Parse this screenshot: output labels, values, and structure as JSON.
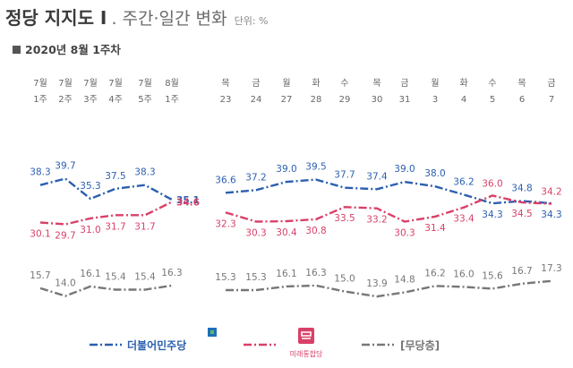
{
  "header": {
    "title": "정당 지지도 I",
    "title_sub": ". 주간·일간 변화",
    "unit": "단위: %",
    "period": "2020년 8월 1주차"
  },
  "legend": {
    "democratic": "더불어민주당",
    "future": "미래통합당",
    "independent": "[무당층]"
  },
  "colors": {
    "democratic": "#2b5fb0",
    "future": "#d94068",
    "independent": "#777777",
    "background": "#ffffff"
  },
  "chart_data": {
    "type": "line",
    "title": "정당 지지도 I",
    "ylabel": "",
    "x_weekly": [
      {
        "top": "7월",
        "bottom": "1주"
      },
      {
        "top": "7월",
        "bottom": "2주"
      },
      {
        "top": "7월",
        "bottom": "3주"
      },
      {
        "top": "7월",
        "bottom": "4주"
      },
      {
        "top": "7월",
        "bottom": "5주"
      },
      {
        "top": "8월",
        "bottom": "1주"
      }
    ],
    "x_daily": [
      {
        "top": "목",
        "bottom": "23"
      },
      {
        "top": "금",
        "bottom": "24"
      },
      {
        "top": "월",
        "bottom": "27"
      },
      {
        "top": "화",
        "bottom": "28"
      },
      {
        "top": "수",
        "bottom": "29"
      },
      {
        "top": "목",
        "bottom": "30"
      },
      {
        "top": "금",
        "bottom": "31"
      },
      {
        "top": "월",
        "bottom": "3"
      },
      {
        "top": "화",
        "bottom": "4"
      },
      {
        "top": "수",
        "bottom": "5"
      },
      {
        "top": "목",
        "bottom": "6"
      },
      {
        "top": "금",
        "bottom": "7"
      }
    ],
    "series": [
      {
        "name": "더불어민주당",
        "weekly": [
          38.3,
          39.7,
          35.3,
          37.5,
          38.3,
          35.1
        ],
        "daily": [
          36.6,
          37.2,
          39.0,
          39.5,
          37.7,
          37.4,
          39.0,
          38.0,
          36.2,
          34.3,
          34.8,
          34.3
        ]
      },
      {
        "name": "미래통합당",
        "weekly": [
          30.1,
          29.7,
          31.0,
          31.7,
          31.7,
          34.6
        ],
        "daily": [
          32.3,
          30.3,
          30.4,
          30.8,
          33.5,
          33.2,
          30.3,
          31.4,
          33.4,
          36.0,
          34.5,
          34.2
        ]
      },
      {
        "name": "[무당층]",
        "weekly": [
          15.7,
          14.0,
          16.1,
          15.4,
          15.4,
          16.3
        ],
        "daily": [
          15.3,
          15.3,
          16.1,
          16.3,
          15.0,
          13.9,
          14.8,
          16.2,
          16.0,
          15.6,
          16.7,
          17.3
        ]
      }
    ]
  }
}
